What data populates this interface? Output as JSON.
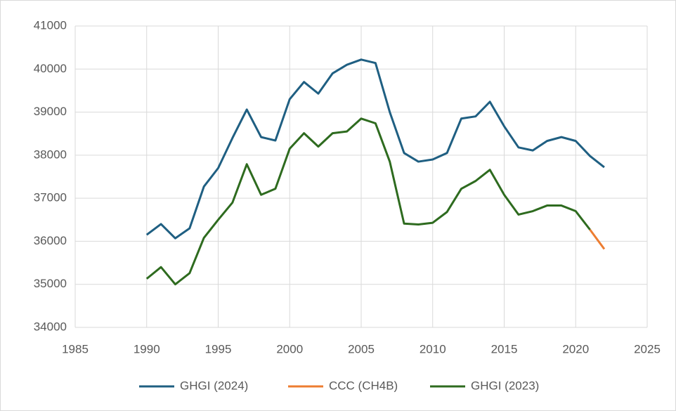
{
  "chart_data": {
    "type": "line",
    "xlim": [
      1985,
      2025
    ],
    "xticks": [
      1985,
      1990,
      1995,
      2000,
      2005,
      2010,
      2015,
      2020,
      2025
    ],
    "ylim": [
      34000,
      41000
    ],
    "yticks": [
      34000,
      35000,
      36000,
      37000,
      38000,
      39000,
      40000,
      41000
    ],
    "grid": true,
    "legend": "bottom",
    "series": [
      {
        "name": "GHGI (2024)",
        "color": "#1f5f82",
        "x": [
          1990,
          1991,
          1992,
          1993,
          1994,
          1995,
          1996,
          1997,
          1998,
          1999,
          2000,
          2001,
          2002,
          2003,
          2004,
          2005,
          2006,
          2007,
          2008,
          2009,
          2010,
          2011,
          2012,
          2013,
          2014,
          2015,
          2016,
          2017,
          2018,
          2019,
          2020,
          2021,
          2022
        ],
        "values": [
          36150,
          36400,
          36070,
          36300,
          37270,
          37700,
          38400,
          39060,
          38420,
          38340,
          39300,
          39700,
          39430,
          39900,
          40100,
          40220,
          40140,
          39000,
          38050,
          37850,
          37900,
          38050,
          38850,
          38900,
          39240,
          38670,
          38180,
          38110,
          38330,
          38420,
          38330,
          37980,
          37720
        ]
      },
      {
        "name": "CCC (CH4B)",
        "color": "#ed7d31",
        "x": [
          2021,
          2022
        ],
        "values": [
          36270,
          35820
        ]
      },
      {
        "name": "GHGI (2023)",
        "color": "#2e6b1f",
        "x": [
          1990,
          1991,
          1992,
          1993,
          1994,
          1995,
          1996,
          1997,
          1998,
          1999,
          2000,
          2001,
          2002,
          2003,
          2004,
          2005,
          2006,
          2007,
          2008,
          2009,
          2010,
          2011,
          2012,
          2013,
          2014,
          2015,
          2016,
          2017,
          2018,
          2019,
          2020,
          2021
        ],
        "values": [
          35130,
          35400,
          35000,
          35260,
          36080,
          36500,
          36900,
          37790,
          37080,
          37220,
          38150,
          38510,
          38200,
          38510,
          38550,
          38850,
          38740,
          37850,
          36410,
          36390,
          36430,
          36680,
          37220,
          37400,
          37660,
          37080,
          36620,
          36700,
          36830,
          36830,
          36700,
          36270
        ]
      }
    ]
  }
}
